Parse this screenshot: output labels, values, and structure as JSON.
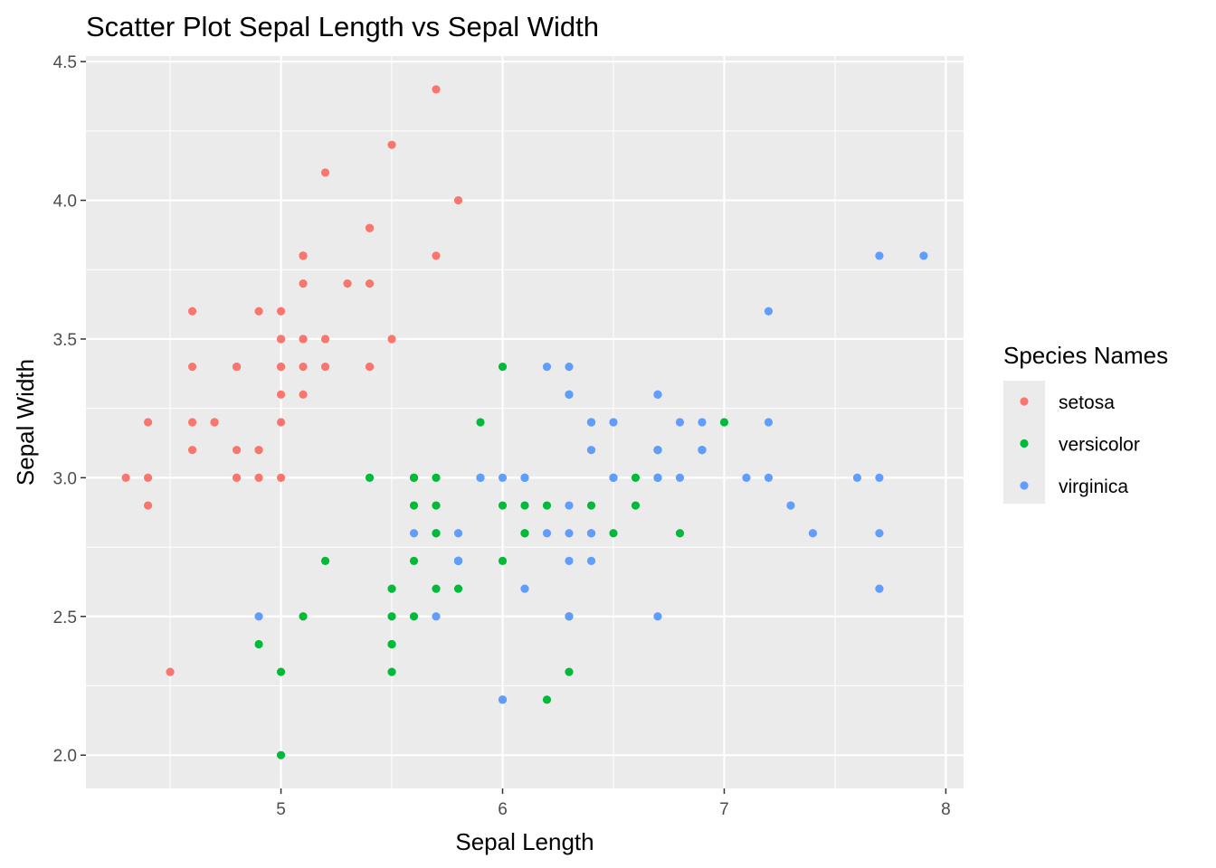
{
  "chart_data": {
    "type": "scatter",
    "title": "Scatter Plot Sepal Length vs Sepal Width",
    "xlabel": "Sepal Length",
    "ylabel": "Sepal Width",
    "xlim": [
      4.12,
      8.08
    ],
    "ylim": [
      1.88,
      4.52
    ],
    "x_ticks": [
      5,
      6,
      7,
      8
    ],
    "x_tick_labels": [
      "5",
      "6",
      "7",
      "8"
    ],
    "y_ticks": [
      2.0,
      2.5,
      3.0,
      3.5,
      4.0,
      4.5
    ],
    "y_tick_labels": [
      "2.0",
      "2.5",
      "3.0",
      "3.5",
      "4.0",
      "4.5"
    ],
    "grid": true,
    "background": "#ebebeb",
    "legend": {
      "title": "Species Names",
      "position": "right"
    },
    "series": [
      {
        "name": "setosa",
        "color": "#f8766d",
        "points": [
          [
            5.1,
            3.5
          ],
          [
            4.9,
            3.0
          ],
          [
            4.7,
            3.2
          ],
          [
            4.6,
            3.1
          ],
          [
            5.0,
            3.6
          ],
          [
            5.4,
            3.9
          ],
          [
            4.6,
            3.4
          ],
          [
            5.0,
            3.4
          ],
          [
            4.4,
            2.9
          ],
          [
            4.9,
            3.1
          ],
          [
            5.4,
            3.7
          ],
          [
            4.8,
            3.4
          ],
          [
            4.8,
            3.0
          ],
          [
            4.3,
            3.0
          ],
          [
            5.8,
            4.0
          ],
          [
            5.7,
            4.4
          ],
          [
            5.4,
            3.9
          ],
          [
            5.1,
            3.5
          ],
          [
            5.7,
            3.8
          ],
          [
            5.1,
            3.8
          ],
          [
            5.4,
            3.4
          ],
          [
            5.1,
            3.7
          ],
          [
            4.6,
            3.6
          ],
          [
            5.1,
            3.3
          ],
          [
            4.8,
            3.4
          ],
          [
            5.0,
            3.0
          ],
          [
            5.0,
            3.4
          ],
          [
            5.2,
            3.5
          ],
          [
            5.2,
            3.4
          ],
          [
            4.7,
            3.2
          ],
          [
            4.8,
            3.1
          ],
          [
            5.4,
            3.4
          ],
          [
            5.2,
            4.1
          ],
          [
            5.5,
            4.2
          ],
          [
            4.9,
            3.1
          ],
          [
            5.0,
            3.2
          ],
          [
            5.5,
            3.5
          ],
          [
            4.9,
            3.6
          ],
          [
            4.4,
            3.0
          ],
          [
            5.1,
            3.4
          ],
          [
            5.0,
            3.5
          ],
          [
            4.5,
            2.3
          ],
          [
            4.4,
            3.2
          ],
          [
            5.0,
            3.5
          ],
          [
            5.1,
            3.8
          ],
          [
            4.8,
            3.0
          ],
          [
            5.1,
            3.8
          ],
          [
            4.6,
            3.2
          ],
          [
            5.3,
            3.7
          ],
          [
            5.0,
            3.3
          ]
        ]
      },
      {
        "name": "versicolor",
        "color": "#00ba38",
        "points": [
          [
            7.0,
            3.2
          ],
          [
            6.4,
            3.2
          ],
          [
            6.9,
            3.1
          ],
          [
            5.5,
            2.3
          ],
          [
            6.5,
            2.8
          ],
          [
            5.7,
            2.8
          ],
          [
            6.3,
            3.3
          ],
          [
            4.9,
            2.4
          ],
          [
            6.6,
            2.9
          ],
          [
            5.2,
            2.7
          ],
          [
            5.0,
            2.0
          ],
          [
            5.9,
            3.0
          ],
          [
            6.0,
            2.2
          ],
          [
            6.1,
            2.9
          ],
          [
            5.6,
            2.9
          ],
          [
            6.7,
            3.1
          ],
          [
            5.6,
            3.0
          ],
          [
            5.8,
            2.7
          ],
          [
            6.2,
            2.2
          ],
          [
            5.6,
            2.5
          ],
          [
            5.9,
            3.2
          ],
          [
            6.1,
            2.8
          ],
          [
            6.3,
            2.5
          ],
          [
            6.1,
            2.8
          ],
          [
            6.4,
            2.9
          ],
          [
            6.6,
            3.0
          ],
          [
            6.8,
            2.8
          ],
          [
            6.7,
            3.0
          ],
          [
            6.0,
            2.9
          ],
          [
            5.7,
            2.6
          ],
          [
            5.5,
            2.4
          ],
          [
            5.5,
            2.4
          ],
          [
            5.8,
            2.7
          ],
          [
            6.0,
            2.7
          ],
          [
            5.4,
            3.0
          ],
          [
            6.0,
            3.4
          ],
          [
            6.7,
            3.1
          ],
          [
            6.3,
            2.3
          ],
          [
            5.6,
            3.0
          ],
          [
            5.5,
            2.5
          ],
          [
            5.5,
            2.6
          ],
          [
            6.1,
            3.0
          ],
          [
            5.8,
            2.6
          ],
          [
            5.0,
            2.3
          ],
          [
            5.6,
            2.7
          ],
          [
            5.7,
            3.0
          ],
          [
            5.7,
            2.9
          ],
          [
            6.2,
            2.9
          ],
          [
            5.1,
            2.5
          ],
          [
            5.7,
            2.8
          ]
        ]
      },
      {
        "name": "virginica",
        "color": "#619cff",
        "points": [
          [
            6.3,
            3.3
          ],
          [
            5.8,
            2.7
          ],
          [
            7.1,
            3.0
          ],
          [
            6.3,
            2.9
          ],
          [
            6.5,
            3.0
          ],
          [
            7.6,
            3.0
          ],
          [
            4.9,
            2.5
          ],
          [
            7.3,
            2.9
          ],
          [
            6.7,
            2.5
          ],
          [
            7.2,
            3.6
          ],
          [
            6.5,
            3.2
          ],
          [
            6.4,
            2.7
          ],
          [
            6.8,
            3.0
          ],
          [
            5.7,
            2.5
          ],
          [
            5.8,
            2.8
          ],
          [
            6.4,
            3.2
          ],
          [
            6.5,
            3.0
          ],
          [
            7.7,
            3.8
          ],
          [
            7.7,
            2.6
          ],
          [
            6.0,
            2.2
          ],
          [
            6.9,
            3.2
          ],
          [
            5.6,
            2.8
          ],
          [
            7.7,
            2.8
          ],
          [
            6.3,
            2.7
          ],
          [
            6.7,
            3.3
          ],
          [
            7.2,
            3.2
          ],
          [
            6.2,
            2.8
          ],
          [
            6.1,
            3.0
          ],
          [
            6.4,
            2.8
          ],
          [
            7.2,
            3.0
          ],
          [
            7.4,
            2.8
          ],
          [
            7.9,
            3.8
          ],
          [
            6.4,
            2.8
          ],
          [
            6.3,
            2.8
          ],
          [
            6.1,
            2.6
          ],
          [
            7.7,
            3.0
          ],
          [
            6.3,
            3.4
          ],
          [
            6.4,
            3.1
          ],
          [
            6.0,
            3.0
          ],
          [
            6.9,
            3.1
          ],
          [
            6.7,
            3.1
          ],
          [
            6.9,
            3.1
          ],
          [
            5.8,
            2.7
          ],
          [
            6.8,
            3.2
          ],
          [
            6.7,
            3.3
          ],
          [
            6.7,
            3.0
          ],
          [
            6.3,
            2.5
          ],
          [
            6.5,
            3.0
          ],
          [
            6.2,
            3.4
          ],
          [
            5.9,
            3.0
          ]
        ]
      }
    ]
  }
}
